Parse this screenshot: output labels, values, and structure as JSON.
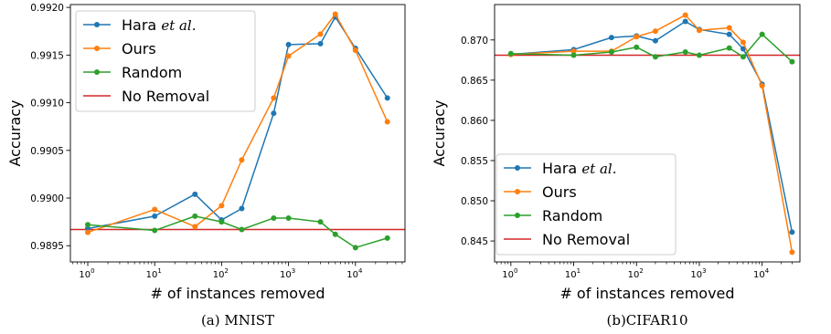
{
  "colors": {
    "hara": "#1f77b4",
    "ours": "#ff7f0e",
    "random": "#2ca02c",
    "no_removal": "#d62728"
  },
  "chart_data": [
    {
      "type": "line",
      "caption": "(a) MNIST",
      "xlabel": "# of instances removed",
      "ylabel": "Accuracy",
      "xscale": "log",
      "xlim": [
        0.55,
        55000
      ],
      "ylim": [
        0.98933,
        0.99203
      ],
      "xticks": [
        {
          "value": 1,
          "base": "10",
          "exp": "0"
        },
        {
          "value": 10,
          "base": "10",
          "exp": "1"
        },
        {
          "value": 100,
          "base": "10",
          "exp": "2"
        },
        {
          "value": 1000,
          "base": "10",
          "exp": "3"
        },
        {
          "value": 10000,
          "base": "10",
          "exp": "4"
        }
      ],
      "yticks": [
        {
          "value": 0.9895,
          "label": "0.9895"
        },
        {
          "value": 0.99,
          "label": "0.9900"
        },
        {
          "value": 0.9905,
          "label": "0.9905"
        },
        {
          "value": 0.991,
          "label": "0.9910"
        },
        {
          "value": 0.9915,
          "label": "0.9915"
        },
        {
          "value": 0.992,
          "label": "0.9920"
        }
      ],
      "legend_position": "top-left",
      "grid": false,
      "x": [
        1,
        10,
        40,
        100,
        200,
        600,
        1000,
        3000,
        5000,
        10000,
        30000
      ],
      "series": [
        {
          "key": "hara",
          "name_main": "Hara ",
          "name_italic": "et al.",
          "values": [
            0.98968,
            0.98981,
            0.99004,
            0.98977,
            0.98989,
            0.99089,
            0.99161,
            0.99162,
            0.9919,
            0.99157,
            0.99105
          ]
        },
        {
          "key": "ours",
          "name_main": "Ours",
          "name_italic": "",
          "values": [
            0.98964,
            0.98988,
            0.9897,
            0.98992,
            0.9904,
            0.99105,
            0.99149,
            0.99172,
            0.99193,
            0.99155,
            0.9908
          ]
        },
        {
          "key": "random",
          "name_main": "Random",
          "name_italic": "",
          "values": [
            0.98972,
            0.98966,
            0.98981,
            0.98975,
            0.98967,
            0.98979,
            0.98979,
            0.98975,
            0.98962,
            0.98948,
            0.98958
          ]
        }
      ],
      "baseline": {
        "key": "no_removal",
        "name": "No Removal",
        "value": 0.98967
      }
    },
    {
      "type": "line",
      "caption": "(b)CIFAR10",
      "xlabel": "# of instances removed",
      "ylabel": "Accuracy",
      "xscale": "log",
      "xlim": [
        0.55,
        40000
      ],
      "ylim": [
        0.8424,
        0.8744
      ],
      "xticks": [
        {
          "value": 1,
          "base": "10",
          "exp": "0"
        },
        {
          "value": 10,
          "base": "10",
          "exp": "1"
        },
        {
          "value": 100,
          "base": "10",
          "exp": "2"
        },
        {
          "value": 1000,
          "base": "10",
          "exp": "3"
        },
        {
          "value": 10000,
          "base": "10",
          "exp": "4"
        }
      ],
      "yticks": [
        {
          "value": 0.845,
          "label": "0.845"
        },
        {
          "value": 0.85,
          "label": "0.850"
        },
        {
          "value": 0.855,
          "label": "0.855"
        },
        {
          "value": 0.86,
          "label": "0.860"
        },
        {
          "value": 0.865,
          "label": "0.865"
        },
        {
          "value": 0.87,
          "label": "0.870"
        }
      ],
      "legend_position": "bottom-left",
      "grid": false,
      "x": [
        1,
        10,
        40,
        100,
        200,
        600,
        1000,
        3000,
        5000,
        10000,
        30000
      ],
      "series": [
        {
          "key": "hara",
          "name_main": "Hara ",
          "name_italic": "et al.",
          "values": [
            0.8682,
            0.8688,
            0.8703,
            0.8705,
            0.8699,
            0.8723,
            0.8713,
            0.8707,
            0.8689,
            0.8645,
            0.8461
          ]
        },
        {
          "key": "ours",
          "name_main": "Ours",
          "name_italic": "",
          "values": [
            0.8682,
            0.8686,
            0.8686,
            0.8704,
            0.8711,
            0.8731,
            0.8712,
            0.8715,
            0.8697,
            0.8643,
            0.8436
          ]
        },
        {
          "key": "random",
          "name_main": "Random",
          "name_italic": "",
          "values": [
            0.8683,
            0.8681,
            0.8685,
            0.8691,
            0.8679,
            0.8685,
            0.8681,
            0.869,
            0.8679,
            0.8707,
            0.8673
          ]
        }
      ],
      "baseline": {
        "key": "no_removal",
        "name": "No Removal",
        "value": 0.8681
      }
    }
  ]
}
